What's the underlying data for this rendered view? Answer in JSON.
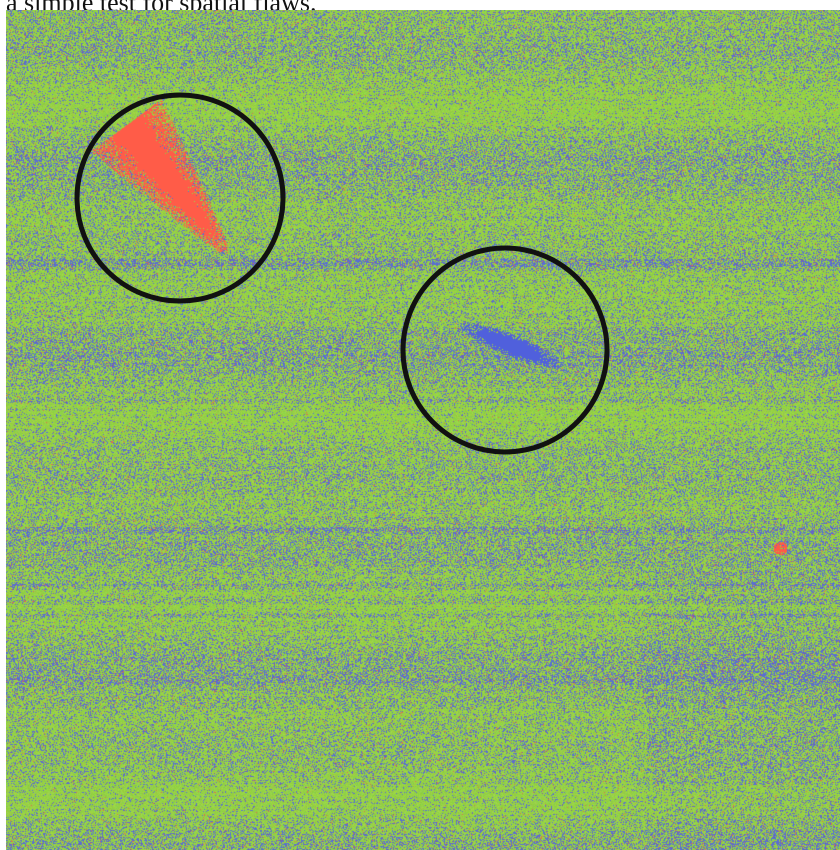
{
  "caption": "a simple test for spatial flaws.",
  "image": {
    "description_colors": {
      "green": "#8fcf3c",
      "blue": "#5a6fd6",
      "purple": "#7a5fb8",
      "red": "#ff5a4a",
      "circle": "#111111"
    }
  }
}
